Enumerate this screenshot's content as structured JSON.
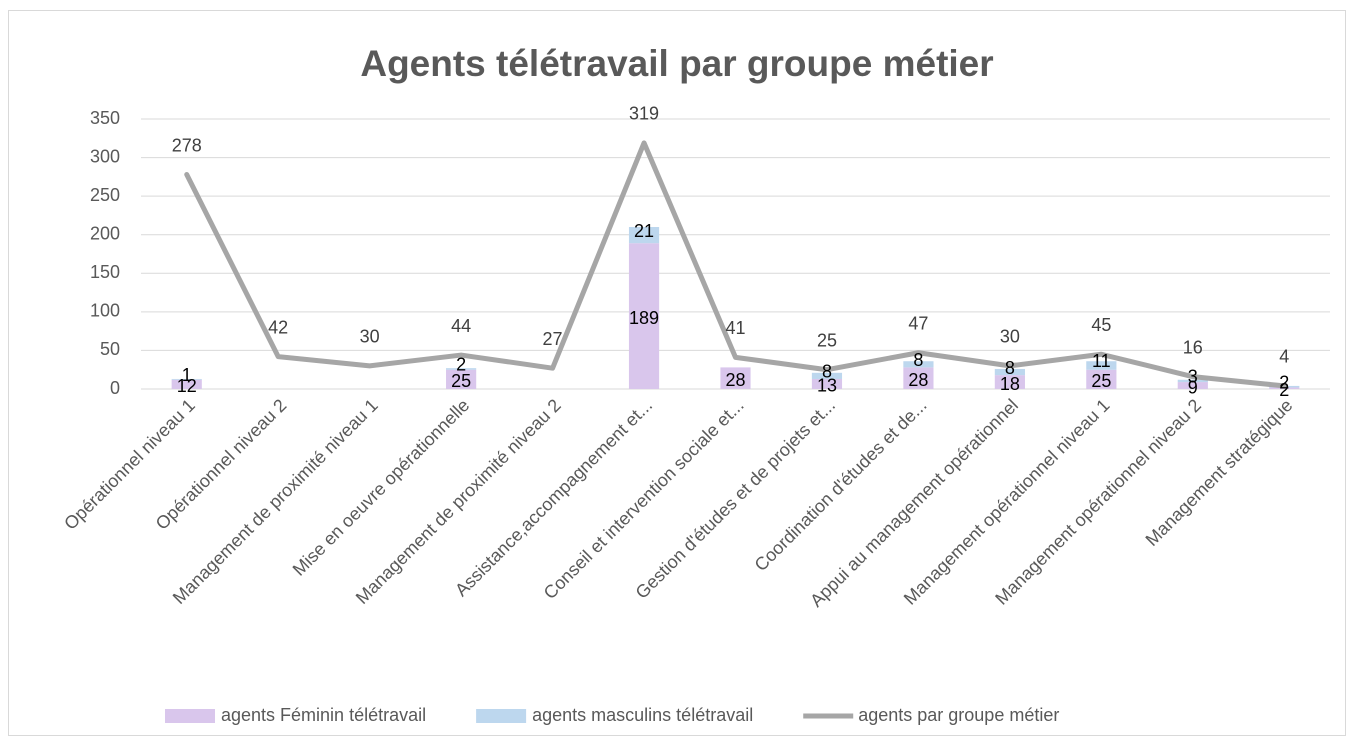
{
  "chart_data": {
    "type": "bar_line",
    "title": "Agents télétravail par groupe métier",
    "categories": [
      "Opérationnel niveau 1",
      "Opérationnel niveau 2",
      "Management de proximité niveau 1",
      "Mise en oeuvre opérationnelle",
      "Management de proximité niveau 2",
      "Assistance,accompagnement et...",
      "Conseil et intervention sociale et...",
      "Gestion d'études et de projets et...",
      "Coordination d'études et de...",
      "Appui au management opérationnel",
      "Management opérationnel niveau 1",
      "Management opérationnel niveau 2",
      "Management stratégique"
    ],
    "series": [
      {
        "name": "agents Féminin télétravail",
        "type": "bar",
        "color": "#d9c6ec",
        "values": [
          12,
          null,
          null,
          25,
          null,
          189,
          28,
          13,
          28,
          18,
          25,
          9,
          2
        ]
      },
      {
        "name": "agents masculins télétravail",
        "type": "bar",
        "color": "#bdd7ee",
        "values": [
          1,
          null,
          null,
          2,
          null,
          21,
          null,
          8,
          8,
          8,
          11,
          3,
          2
        ]
      },
      {
        "name": "agents par groupe métier",
        "type": "line",
        "color": "#a6a6a6",
        "values": [
          278,
          42,
          30,
          44,
          27,
          319,
          41,
          25,
          47,
          30,
          45,
          16,
          4
        ]
      }
    ],
    "stacked": true,
    "ylim": [
      0,
      350
    ],
    "yticks": [
      0,
      50,
      100,
      150,
      200,
      250,
      300,
      350
    ],
    "grid": true,
    "legend": "bottom"
  }
}
